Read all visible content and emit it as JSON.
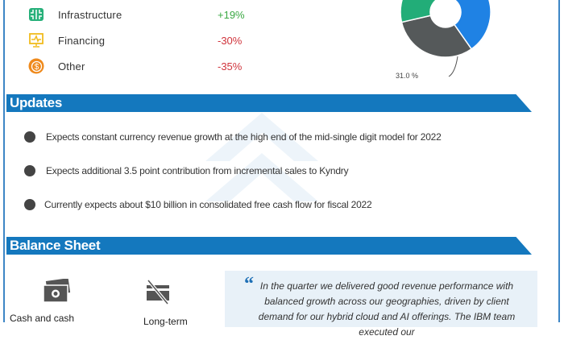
{
  "segments": [
    {
      "label": "Infrastructure",
      "change": "+19%",
      "color": "#3aa843",
      "icon": "chip-icon",
      "icon_color": "#27b07a"
    },
    {
      "label": "Financing",
      "change": "-30%",
      "color": "#d0343c",
      "icon": "monitor-chart-icon",
      "icon_color": "#f1bb1e"
    },
    {
      "label": "Other",
      "change": "-35%",
      "color": "#d0343c",
      "icon": "dollar-coin-icon",
      "icon_color": "#ef8a1c"
    }
  ],
  "donut": {
    "label": "31.0 %",
    "colors": {
      "blue": "#1f82e4",
      "gray": "#55595a",
      "green": "#22ad78"
    }
  },
  "updates": {
    "title": "Updates",
    "items": [
      "Expects constant currency revenue growth at the high end of the mid-single digit model for 2022",
      "Expects additional 3.5 point contribution from incremental sales to Kyndry",
      "Currently expects about $10 billion in consolidated free cash flow for fiscal 2022"
    ]
  },
  "balance_sheet": {
    "title": "Balance Sheet",
    "cash_label": "Cash and cash",
    "debt_label": "Long-term",
    "quote": "In the quarter we delivered good revenue performance with balanced growth across our geographies, driven by client demand for our hybrid cloud and AI offerings. The IBM team executed our",
    "quote_mark": "“"
  },
  "accent": "#1478be"
}
